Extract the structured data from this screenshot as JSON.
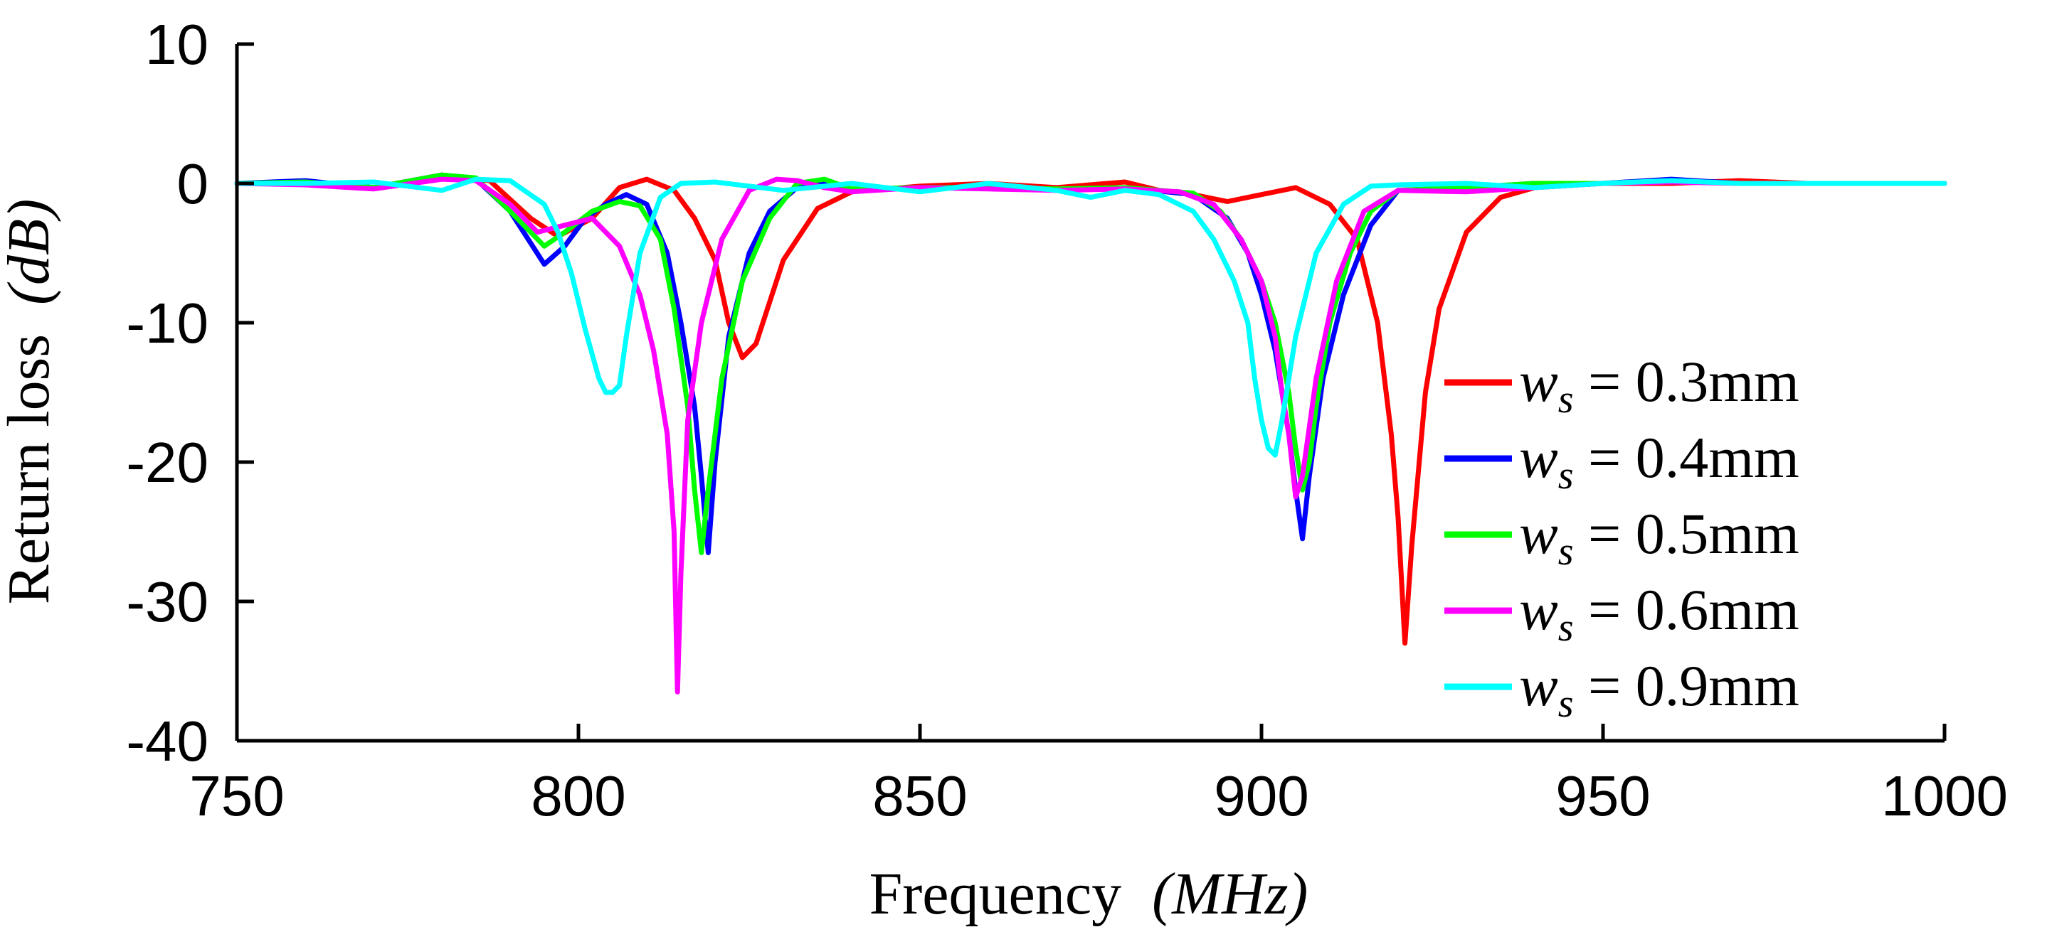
{
  "chart_data": {
    "type": "line",
    "title": "",
    "xlabel": "Frequency",
    "xlabel_unit": "(MHz)",
    "ylabel": "Return loss",
    "ylabel_unit": "(dB)",
    "xlim": [
      750,
      1000
    ],
    "ylim": [
      -40,
      10
    ],
    "xticks": [
      750,
      800,
      850,
      900,
      950,
      1000
    ],
    "yticks": [
      10,
      0,
      -10,
      -20,
      -30,
      -40
    ],
    "xtick_labels": [
      "750",
      "800",
      "850",
      "900",
      "950",
      "1000"
    ],
    "ytick_labels": [
      "10",
      "0",
      "-10",
      "-20",
      "-30",
      "-40"
    ],
    "grid": false,
    "legend_position": "right",
    "series": [
      {
        "name": "w_s = 0.3mm",
        "label_main": "w",
        "label_sub": "s",
        "label_rest": " = 0.3mm",
        "color": "#ff0000",
        "x": [
          750,
          760,
          770,
          780,
          787,
          793,
          797,
          802,
          806,
          810,
          814,
          817,
          820,
          822,
          824,
          826,
          830,
          835,
          840,
          850,
          860,
          870,
          880,
          885,
          890,
          895,
          900,
          905,
          910,
          914,
          917,
          919,
          920,
          921,
          922,
          924,
          926,
          930,
          935,
          940,
          950,
          960,
          970,
          980,
          990,
          1000
        ],
        "y": [
          0,
          0,
          -0.3,
          0.6,
          0.2,
          -2.5,
          -3.8,
          -2.5,
          -0.3,
          0.3,
          -0.5,
          -2.5,
          -5.5,
          -10,
          -12.5,
          -11.5,
          -5.5,
          -1.8,
          -0.6,
          -0.2,
          0,
          -0.3,
          0.1,
          -0.5,
          -0.8,
          -1.3,
          -0.8,
          -0.3,
          -1.5,
          -4,
          -10,
          -18,
          -24,
          -33,
          -26,
          -15,
          -9,
          -3.5,
          -1,
          -0.3,
          0,
          0,
          0.2,
          0,
          0,
          0
        ]
      },
      {
        "name": "w_s = 0.4mm",
        "label_main": "w",
        "label_sub": "s",
        "label_rest": " = 0.4mm",
        "color": "#0000ff",
        "x": [
          750,
          760,
          770,
          780,
          785,
          790,
          795,
          798,
          801,
          804,
          807,
          810,
          813,
          815,
          817,
          818,
          819,
          820,
          822,
          825,
          828,
          832,
          836,
          840,
          850,
          860,
          870,
          880,
          890,
          895,
          898,
          900,
          902,
          904,
          905,
          906,
          907,
          909,
          912,
          916,
          920,
          930,
          940,
          950,
          960,
          970,
          980,
          990,
          1000
        ],
        "y": [
          0,
          0.2,
          -0.3,
          0.6,
          0.3,
          -2,
          -5.8,
          -4.5,
          -2.5,
          -1.5,
          -0.8,
          -1.5,
          -5,
          -10,
          -16,
          -21,
          -26.5,
          -20,
          -11,
          -5,
          -2,
          -0.3,
          0,
          -0.5,
          -0.3,
          -0.3,
          -0.5,
          -0.3,
          -0.8,
          -2.5,
          -5,
          -8,
          -12,
          -18,
          -22,
          -25.5,
          -21,
          -14,
          -8,
          -3,
          -0.5,
          -0.3,
          0,
          0,
          0.3,
          0,
          0,
          0,
          0
        ]
      },
      {
        "name": "w_s = 0.5mm",
        "label_main": "w",
        "label_sub": "s",
        "label_rest": " = 0.5mm",
        "color": "#00ff00",
        "x": [
          750,
          760,
          770,
          780,
          785,
          790,
          795,
          798,
          802,
          806,
          809,
          812,
          814,
          816,
          817,
          818,
          819,
          821,
          824,
          828,
          832,
          836,
          840,
          850,
          860,
          870,
          880,
          890,
          894,
          897,
          900,
          902,
          904,
          905,
          906,
          907,
          908,
          910,
          913,
          916,
          920,
          930,
          940,
          950,
          960,
          970,
          980,
          990,
          1000
        ],
        "y": [
          0,
          0.1,
          -0.3,
          0.6,
          0.4,
          -2,
          -4.5,
          -3.5,
          -2,
          -1.3,
          -1.6,
          -4,
          -9,
          -16,
          -22,
          -26.5,
          -22,
          -14,
          -7,
          -2.5,
          0,
          0.3,
          -0.4,
          -0.3,
          -0.3,
          -0.4,
          -0.3,
          -0.7,
          -2,
          -4,
          -7,
          -10,
          -15,
          -19,
          -22,
          -20,
          -16,
          -10,
          -5,
          -2,
          -0.5,
          -0.3,
          0,
          0,
          0.2,
          0,
          0,
          0,
          0
        ]
      },
      {
        "name": "w_s = 0.6mm",
        "label_main": "w",
        "label_sub": "s",
        "label_rest": " = 0.6mm",
        "color": "#ff00ff",
        "x": [
          750,
          760,
          770,
          780,
          785,
          790,
          794,
          798,
          802,
          806,
          809,
          811,
          813,
          814,
          814.5,
          815,
          816,
          818,
          821,
          825,
          829,
          832,
          836,
          840,
          850,
          860,
          870,
          880,
          888,
          893,
          897,
          900,
          902,
          903,
          904,
          905,
          906,
          908,
          911,
          915,
          920,
          930,
          940,
          950,
          960,
          970,
          980,
          990,
          1000
        ],
        "y": [
          0,
          -0.1,
          -0.4,
          0.3,
          0.2,
          -1.5,
          -3.5,
          -3,
          -2.5,
          -4.5,
          -8,
          -12,
          -18,
          -25,
          -36.5,
          -28,
          -17,
          -10,
          -4,
          -0.5,
          0.3,
          0.2,
          -0.3,
          -0.6,
          -0.3,
          -0.4,
          -0.5,
          -0.4,
          -0.6,
          -1.5,
          -4,
          -7,
          -11,
          -15,
          -18,
          -22.5,
          -21,
          -14,
          -7,
          -2,
          -0.5,
          -0.6,
          -0.3,
          0,
          0.1,
          0,
          0,
          0,
          0
        ]
      },
      {
        "name": "w_s = 0.9mm",
        "label_main": "w",
        "label_sub": "s",
        "label_rest": " = 0.9mm",
        "color": "#00ffff",
        "x": [
          750,
          760,
          770,
          780,
          785,
          790,
          795,
          797,
          799,
          801,
          803,
          804,
          805,
          806,
          807,
          809,
          812,
          815,
          820,
          830,
          840,
          850,
          860,
          870,
          875,
          880,
          885,
          890,
          893,
          896,
          898,
          899,
          900,
          901,
          902,
          903,
          905,
          908,
          912,
          916,
          920,
          930,
          940,
          950,
          960,
          970,
          980,
          990,
          1000
        ],
        "y": [
          0,
          0,
          0.1,
          -0.5,
          0.3,
          0.2,
          -1.5,
          -3.5,
          -6.5,
          -10.5,
          -14,
          -15,
          -15,
          -14.5,
          -11,
          -5,
          -1,
          0,
          0.1,
          -0.5,
          0,
          -0.6,
          0,
          -0.5,
          -1,
          -0.5,
          -0.8,
          -2,
          -4,
          -7,
          -10,
          -14,
          -17,
          -19,
          -19.5,
          -17,
          -11,
          -5,
          -1.5,
          -0.2,
          -0.1,
          0,
          -0.3,
          0,
          0.2,
          0,
          0,
          0,
          0
        ]
      }
    ]
  }
}
